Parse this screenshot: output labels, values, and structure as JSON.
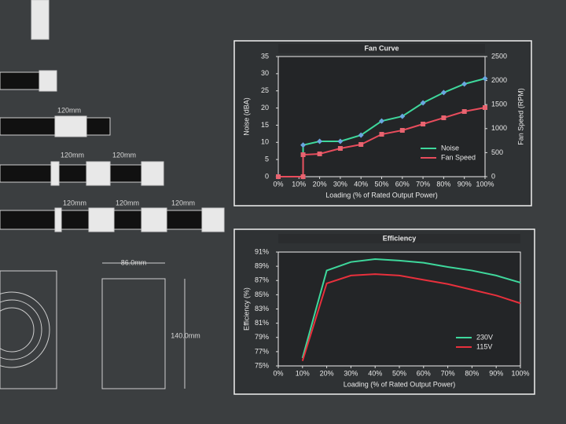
{
  "chart_data": [
    {
      "type": "line",
      "title": "Fan Curve",
      "xlabel": "Loading (% of Rated Output Power)",
      "ylabel": "Noise (dBA)",
      "y2label": "Fan Speed (RPM)",
      "x": [
        0,
        12,
        12,
        20,
        30,
        40,
        50,
        60,
        70,
        80,
        90,
        100
      ],
      "xlim": [
        0,
        100
      ],
      "xticks": [
        {
          "value": 0,
          "label": "0%"
        },
        {
          "value": 10,
          "label": "10%"
        },
        {
          "value": 20,
          "label": "20%"
        },
        {
          "value": 30,
          "label": "30%"
        },
        {
          "value": 40,
          "label": "40%"
        },
        {
          "value": 50,
          "label": "50%"
        },
        {
          "value": 60,
          "label": "60%"
        },
        {
          "value": 70,
          "label": "70%"
        },
        {
          "value": 80,
          "label": "80%"
        },
        {
          "value": 90,
          "label": "90%"
        },
        {
          "value": 100,
          "label": "100%"
        }
      ],
      "ylim": [
        0,
        35
      ],
      "yticks": [
        0,
        5,
        10,
        15,
        20,
        25,
        30,
        35
      ],
      "y2lim": [
        0,
        2500
      ],
      "y2ticks": [
        0,
        500,
        1000,
        1500,
        2000,
        2500
      ],
      "legend": "lower right",
      "series": [
        {
          "name": "Noise",
          "color": "#3ed89c",
          "marker_color": "#6aa6e0",
          "marker": "diamond",
          "values": [
            0,
            0,
            9.2,
            10.3,
            10.3,
            12.1,
            16.2,
            17.6,
            21.5,
            24.5,
            27,
            28.6
          ]
        },
        {
          "name": "Fan Speed",
          "color": "#e84c5c",
          "marker_color": "#e86470",
          "marker": "square",
          "axis": "y2",
          "values": [
            0,
            0,
            457,
            474,
            588,
            670,
            882,
            964,
            1095,
            1225,
            1356,
            1438
          ]
        }
      ]
    },
    {
      "type": "line",
      "title": "Efficiency",
      "xlabel": "Loading (% of Rated Output Power)",
      "ylabel": "Efficiency (%)",
      "x": [
        10,
        20,
        30,
        40,
        50,
        60,
        70,
        80,
        90,
        100
      ],
      "xlim": [
        0,
        100
      ],
      "xticks": [
        {
          "value": 0,
          "label": "0%"
        },
        {
          "value": 10,
          "label": "10%"
        },
        {
          "value": 20,
          "label": "20%"
        },
        {
          "value": 30,
          "label": "30%"
        },
        {
          "value": 40,
          "label": "40%"
        },
        {
          "value": 50,
          "label": "50%"
        },
        {
          "value": 60,
          "label": "60%"
        },
        {
          "value": 70,
          "label": "70%"
        },
        {
          "value": 80,
          "label": "80%"
        },
        {
          "value": 90,
          "label": "90%"
        },
        {
          "value": 100,
          "label": "100%"
        }
      ],
      "ylim": [
        75,
        91
      ],
      "yticks": [
        {
          "value": 75,
          "label": "75%"
        },
        {
          "value": 77,
          "label": "77%"
        },
        {
          "value": 79,
          "label": "79%"
        },
        {
          "value": 81,
          "label": "81%"
        },
        {
          "value": 83,
          "label": "83%"
        },
        {
          "value": 85,
          "label": "85%"
        },
        {
          "value": 87,
          "label": "87%"
        },
        {
          "value": 89,
          "label": "89%"
        },
        {
          "value": 91,
          "label": "91%"
        }
      ],
      "legend": "lower right",
      "series": [
        {
          "name": "230V",
          "color": "#3ed89c",
          "values": [
            76.1,
            88.4,
            89.6,
            90.0,
            89.8,
            89.5,
            88.9,
            88.4,
            87.7,
            86.7
          ]
        },
        {
          "name": "115V",
          "color": "#e8303c",
          "values": [
            75.7,
            86.6,
            87.7,
            87.9,
            87.7,
            87.1,
            86.5,
            85.7,
            84.9,
            83.8
          ]
        }
      ]
    }
  ],
  "annotations": [
    "120mm",
    "120mm",
    "120mm",
    "120mm",
    "120mm",
    "120mm",
    "86.0mm",
    "140.0mm"
  ]
}
